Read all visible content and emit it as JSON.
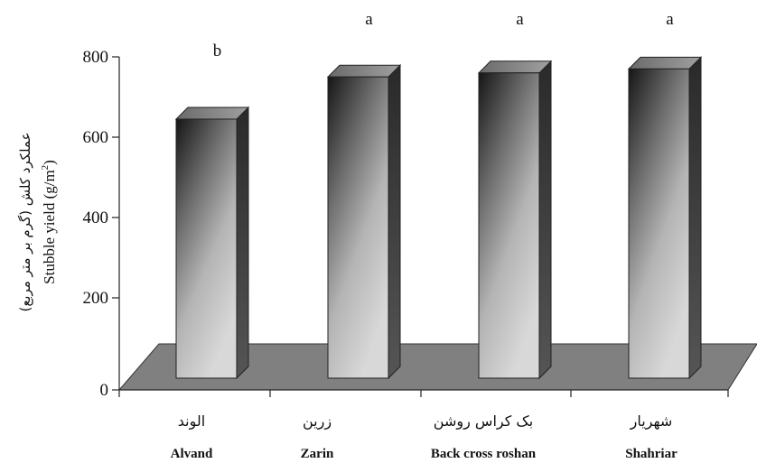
{
  "chart_data": {
    "type": "bar",
    "title": "",
    "ylabel_fa": "عملکرد کلش (گرم بر متر مربع)",
    "ylabel": "Stubble yield (g/m",
    "ylabel_sup": "2",
    "ylabel_close": ")",
    "ylim": [
      0,
      800
    ],
    "yticks": [
      "0",
      "200",
      "400",
      "600",
      "800"
    ],
    "categories": [
      "Alvand",
      "Zarin",
      "Back cross roshan",
      "Shahriar"
    ],
    "categories_fa": [
      "الوند",
      "زرین",
      "بک کراس روشن",
      "شهریار"
    ],
    "values": [
      645,
      750,
      760,
      770
    ],
    "letters": [
      "b",
      "a",
      "a",
      "a"
    ],
    "grid": false,
    "legend": "none",
    "colors": {
      "floor": "#808080",
      "bar_top": "#8c8c8c",
      "bar_side": "#3a3a3a",
      "bar_front_dark": "#1a1a1a",
      "bar_front_light": "#d6d6d6"
    }
  }
}
